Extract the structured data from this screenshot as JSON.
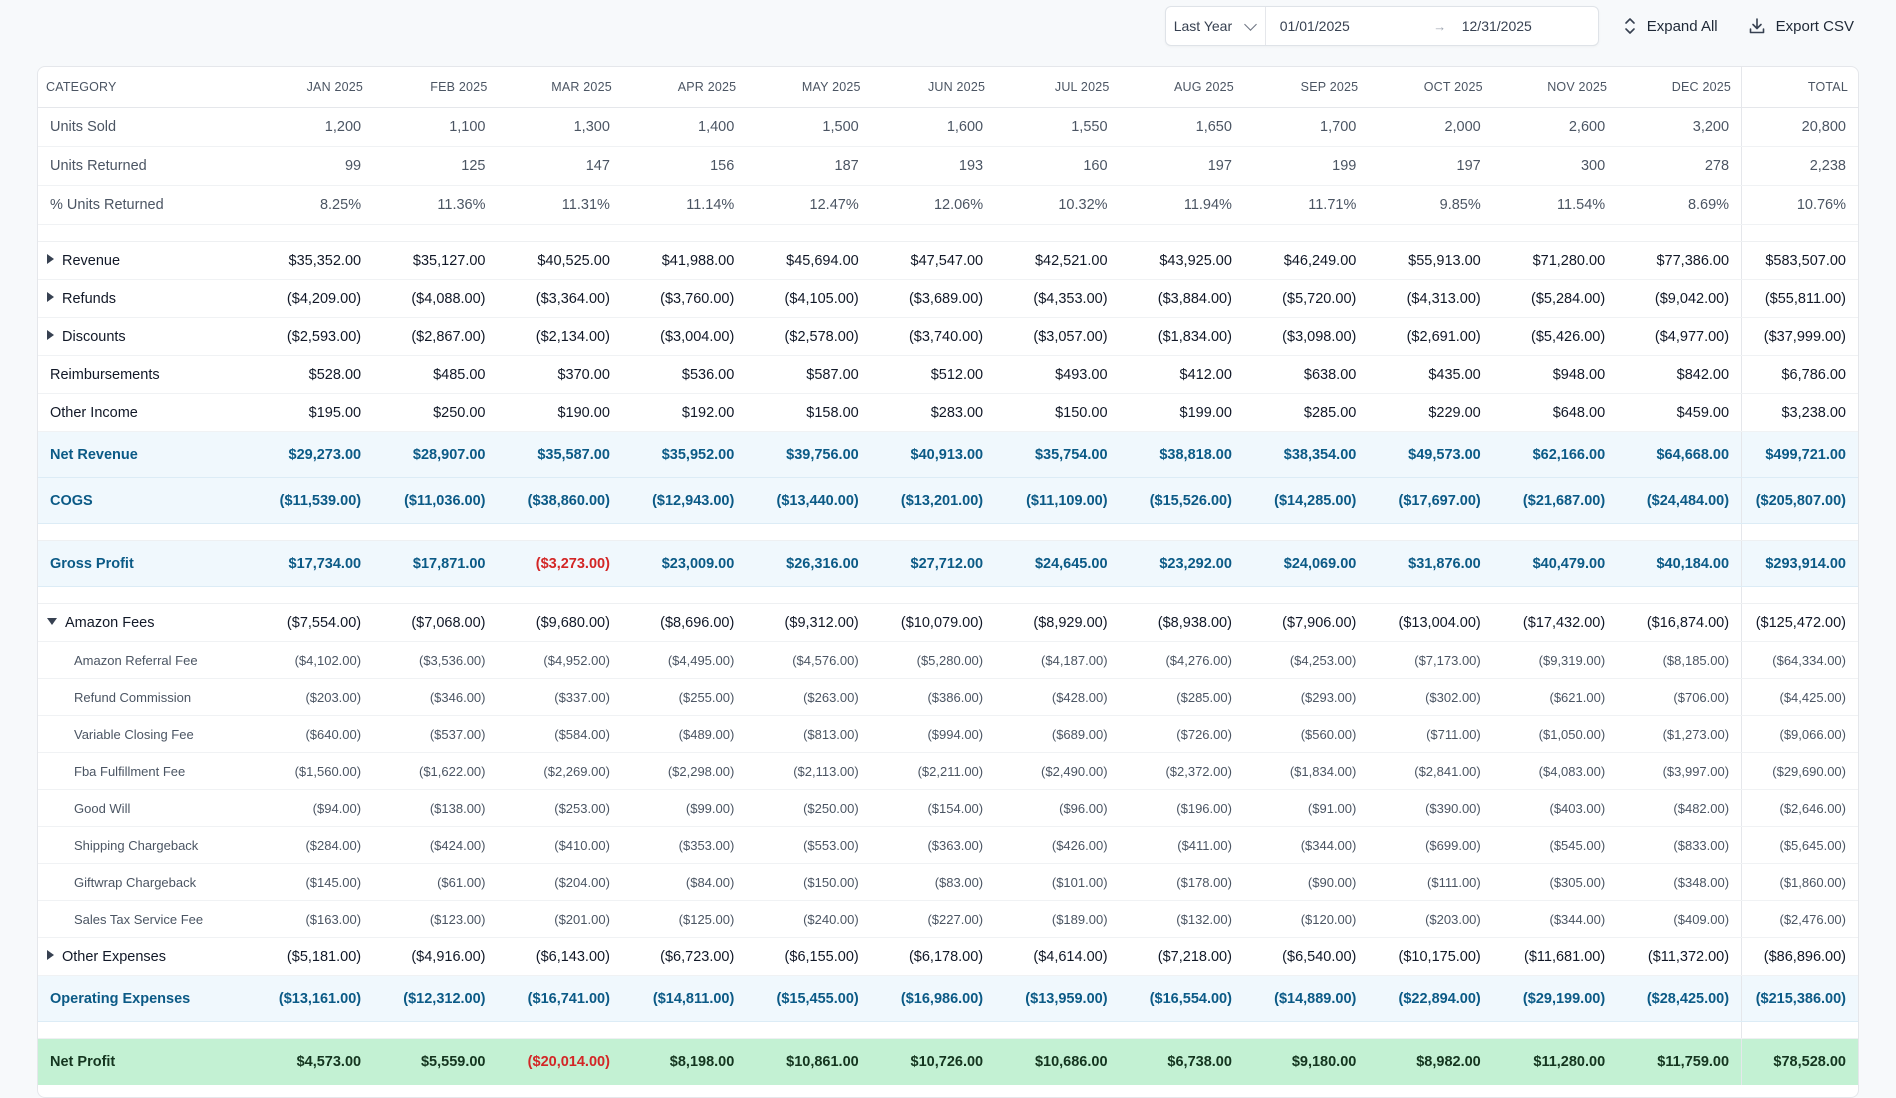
{
  "toolbar": {
    "preset": "Last Year",
    "start_date": "01/01/2025",
    "end_date": "12/31/2025",
    "expand_label": "Expand All",
    "export_label": "Export CSV"
  },
  "columns": [
    "CATEGORY",
    "JAN 2025",
    "FEB 2025",
    "MAR 2025",
    "APR 2025",
    "MAY 2025",
    "JUN 2025",
    "JUL 2025",
    "AUG 2025",
    "SEP 2025",
    "OCT 2025",
    "NOV 2025",
    "DEC 2025",
    "TOTAL"
  ],
  "rows": [
    {
      "type": "metric",
      "label": "Units Sold",
      "values": [
        "1,200",
        "1,100",
        "1,300",
        "1,400",
        "1,500",
        "1,600",
        "1,550",
        "1,650",
        "1,700",
        "2,000",
        "2,600",
        "3,200",
        "20,800"
      ]
    },
    {
      "type": "metric",
      "label": "Units Returned",
      "values": [
        "99",
        "125",
        "147",
        "156",
        "187",
        "193",
        "160",
        "197",
        "199",
        "197",
        "300",
        "278",
        "2,238"
      ]
    },
    {
      "type": "metric",
      "label": "% Units Returned",
      "values": [
        "8.25%",
        "11.36%",
        "11.31%",
        "11.14%",
        "12.47%",
        "12.06%",
        "10.32%",
        "11.94%",
        "11.71%",
        "9.85%",
        "11.54%",
        "8.69%",
        "10.76%"
      ]
    },
    {
      "type": "spacer"
    },
    {
      "type": "line",
      "label": "Revenue",
      "expandable": true,
      "expanded": false,
      "values": [
        "$35,352.00",
        "$35,127.00",
        "$40,525.00",
        "$41,988.00",
        "$45,694.00",
        "$47,547.00",
        "$42,521.00",
        "$43,925.00",
        "$46,249.00",
        "$55,913.00",
        "$71,280.00",
        "$77,386.00",
        "$583,507.00"
      ]
    },
    {
      "type": "line",
      "label": "Refunds",
      "expandable": true,
      "expanded": false,
      "values": [
        "($4,209.00)",
        "($4,088.00)",
        "($3,364.00)",
        "($3,760.00)",
        "($4,105.00)",
        "($3,689.00)",
        "($4,353.00)",
        "($3,884.00)",
        "($5,720.00)",
        "($4,313.00)",
        "($5,284.00)",
        "($9,042.00)",
        "($55,811.00)"
      ]
    },
    {
      "type": "line",
      "label": "Discounts",
      "expandable": true,
      "expanded": false,
      "values": [
        "($2,593.00)",
        "($2,867.00)",
        "($2,134.00)",
        "($3,004.00)",
        "($2,578.00)",
        "($3,740.00)",
        "($3,057.00)",
        "($1,834.00)",
        "($3,098.00)",
        "($2,691.00)",
        "($5,426.00)",
        "($4,977.00)",
        "($37,999.00)"
      ]
    },
    {
      "type": "line",
      "label": "Reimbursements",
      "values": [
        "$528.00",
        "$485.00",
        "$370.00",
        "$536.00",
        "$587.00",
        "$512.00",
        "$493.00",
        "$412.00",
        "$638.00",
        "$435.00",
        "$948.00",
        "$842.00",
        "$6,786.00"
      ]
    },
    {
      "type": "line",
      "label": "Other Income",
      "values": [
        "$195.00",
        "$250.00",
        "$190.00",
        "$192.00",
        "$158.00",
        "$283.00",
        "$150.00",
        "$199.00",
        "$285.00",
        "$229.00",
        "$648.00",
        "$459.00",
        "$3,238.00"
      ]
    },
    {
      "type": "total",
      "label": "Net Revenue",
      "values": [
        "$29,273.00",
        "$28,907.00",
        "$35,587.00",
        "$35,952.00",
        "$39,756.00",
        "$40,913.00",
        "$35,754.00",
        "$38,818.00",
        "$38,354.00",
        "$49,573.00",
        "$62,166.00",
        "$64,668.00",
        "$499,721.00"
      ]
    },
    {
      "type": "total",
      "label": "COGS",
      "values": [
        "($11,539.00)",
        "($11,036.00)",
        "($38,860.00)",
        "($12,943.00)",
        "($13,440.00)",
        "($13,201.00)",
        "($11,109.00)",
        "($15,526.00)",
        "($14,285.00)",
        "($17,697.00)",
        "($21,687.00)",
        "($24,484.00)",
        "($205,807.00)"
      ]
    },
    {
      "type": "spacer"
    },
    {
      "type": "total",
      "label": "Gross Profit",
      "values": [
        "$17,734.00",
        "$17,871.00",
        "($3,273.00)",
        "$23,009.00",
        "$26,316.00",
        "$27,712.00",
        "$24,645.00",
        "$23,292.00",
        "$24,069.00",
        "$31,876.00",
        "$40,479.00",
        "$40,184.00",
        "$293,914.00"
      ]
    },
    {
      "type": "spacer"
    },
    {
      "type": "line",
      "label": "Amazon Fees",
      "expandable": true,
      "expanded": true,
      "values": [
        "($7,554.00)",
        "($7,068.00)",
        "($9,680.00)",
        "($8,696.00)",
        "($9,312.00)",
        "($10,079.00)",
        "($8,929.00)",
        "($8,938.00)",
        "($7,906.00)",
        "($13,004.00)",
        "($17,432.00)",
        "($16,874.00)",
        "($125,472.00)"
      ]
    },
    {
      "type": "sub",
      "label": "Amazon Referral Fee",
      "values": [
        "($4,102.00)",
        "($3,536.00)",
        "($4,952.00)",
        "($4,495.00)",
        "($4,576.00)",
        "($5,280.00)",
        "($4,187.00)",
        "($4,276.00)",
        "($4,253.00)",
        "($7,173.00)",
        "($9,319.00)",
        "($8,185.00)",
        "($64,334.00)"
      ]
    },
    {
      "type": "sub",
      "label": "Refund Commission",
      "values": [
        "($203.00)",
        "($346.00)",
        "($337.00)",
        "($255.00)",
        "($263.00)",
        "($386.00)",
        "($428.00)",
        "($285.00)",
        "($293.00)",
        "($302.00)",
        "($621.00)",
        "($706.00)",
        "($4,425.00)"
      ]
    },
    {
      "type": "sub",
      "label": "Variable Closing Fee",
      "values": [
        "($640.00)",
        "($537.00)",
        "($584.00)",
        "($489.00)",
        "($813.00)",
        "($994.00)",
        "($689.00)",
        "($726.00)",
        "($560.00)",
        "($711.00)",
        "($1,050.00)",
        "($1,273.00)",
        "($9,066.00)"
      ]
    },
    {
      "type": "sub",
      "label": "Fba Fulfillment Fee",
      "values": [
        "($1,560.00)",
        "($1,622.00)",
        "($2,269.00)",
        "($2,298.00)",
        "($2,113.00)",
        "($2,211.00)",
        "($2,490.00)",
        "($2,372.00)",
        "($1,834.00)",
        "($2,841.00)",
        "($4,083.00)",
        "($3,997.00)",
        "($29,690.00)"
      ]
    },
    {
      "type": "sub",
      "label": "Good Will",
      "values": [
        "($94.00)",
        "($138.00)",
        "($253.00)",
        "($99.00)",
        "($250.00)",
        "($154.00)",
        "($96.00)",
        "($196.00)",
        "($91.00)",
        "($390.00)",
        "($403.00)",
        "($482.00)",
        "($2,646.00)"
      ]
    },
    {
      "type": "sub",
      "label": "Shipping Chargeback",
      "values": [
        "($284.00)",
        "($424.00)",
        "($410.00)",
        "($353.00)",
        "($553.00)",
        "($363.00)",
        "($426.00)",
        "($411.00)",
        "($344.00)",
        "($699.00)",
        "($545.00)",
        "($833.00)",
        "($5,645.00)"
      ]
    },
    {
      "type": "sub",
      "label": "Giftwrap Chargeback",
      "values": [
        "($145.00)",
        "($61.00)",
        "($204.00)",
        "($84.00)",
        "($150.00)",
        "($83.00)",
        "($101.00)",
        "($178.00)",
        "($90.00)",
        "($111.00)",
        "($305.00)",
        "($348.00)",
        "($1,860.00)"
      ]
    },
    {
      "type": "sub",
      "label": "Sales Tax Service Fee",
      "values": [
        "($163.00)",
        "($123.00)",
        "($201.00)",
        "($125.00)",
        "($240.00)",
        "($227.00)",
        "($189.00)",
        "($132.00)",
        "($120.00)",
        "($203.00)",
        "($344.00)",
        "($409.00)",
        "($2,476.00)"
      ]
    },
    {
      "type": "line",
      "label": "Other Expenses",
      "expandable": true,
      "expanded": false,
      "values": [
        "($5,181.00)",
        "($4,916.00)",
        "($6,143.00)",
        "($6,723.00)",
        "($6,155.00)",
        "($6,178.00)",
        "($4,614.00)",
        "($7,218.00)",
        "($6,540.00)",
        "($10,175.00)",
        "($11,681.00)",
        "($11,372.00)",
        "($86,896.00)"
      ]
    },
    {
      "type": "total",
      "label": "Operating Expenses",
      "values": [
        "($13,161.00)",
        "($12,312.00)",
        "($16,741.00)",
        "($14,811.00)",
        "($15,455.00)",
        "($16,986.00)",
        "($13,959.00)",
        "($16,554.00)",
        "($14,889.00)",
        "($22,894.00)",
        "($29,199.00)",
        "($28,425.00)",
        "($215,386.00)"
      ]
    },
    {
      "type": "spacer"
    },
    {
      "type": "net",
      "label": "Net Profit",
      "values": [
        "$4,573.00",
        "$5,559.00",
        "($20,014.00)",
        "$8,198.00",
        "$10,861.00",
        "$10,726.00",
        "$10,686.00",
        "$6,738.00",
        "$9,180.00",
        "$8,982.00",
        "$11,280.00",
        "$11,759.00",
        "$78,528.00"
      ]
    }
  ],
  "negative_highlight_rows": [
    "Gross Profit",
    "Net Profit"
  ],
  "colors": {
    "accent": "#0b5a86",
    "negative": "#d32626",
    "net_bg": "#c3f1d3",
    "total_bg": "#f0f8fd"
  }
}
